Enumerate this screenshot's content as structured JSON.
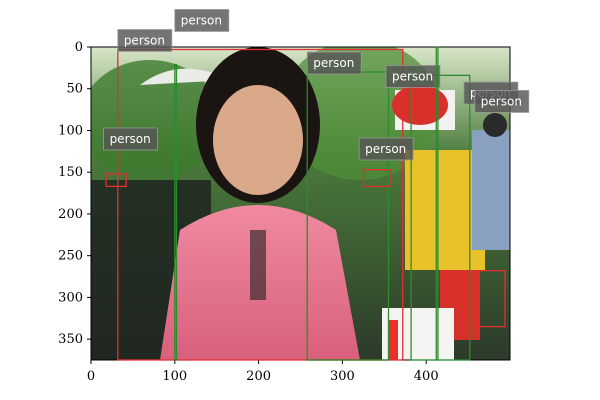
{
  "image": {
    "description_tag": "photo",
    "width": 500,
    "height": 375
  },
  "axes": {
    "x_ticks": [
      0,
      100,
      200,
      300,
      400
    ],
    "y_ticks": [
      0,
      50,
      100,
      150,
      200,
      250,
      300,
      350
    ],
    "x_range": [
      0,
      500
    ],
    "y_range": [
      375,
      0
    ]
  },
  "detections": [
    {
      "label": "person",
      "color": "#e03030",
      "x0": 32,
      "y0": 3,
      "x1": 372,
      "y1": 375,
      "label_x": 32,
      "label_y": -3
    },
    {
      "label": "person",
      "color": "#2e8b2e",
      "x0": 100,
      "y0": 21,
      "x1": 102,
      "y1": 375,
      "label_x": 100,
      "label_y": -27
    },
    {
      "label": "person",
      "color": "#2e8b2e",
      "x0": 258,
      "y0": 30,
      "x1": 355,
      "y1": 375,
      "label_x": 258,
      "label_y": 24
    },
    {
      "label": "person",
      "color": "#2e8b2e",
      "x0": 382,
      "y0": 34,
      "x1": 452,
      "y1": 375,
      "label_x": 352,
      "label_y": 40
    },
    {
      "label": "person",
      "color": "#2e8b2e",
      "x0": 412,
      "y0": 0,
      "x1": 414,
      "y1": 375,
      "label_x": 445,
      "label_y": 60
    },
    {
      "label": "person",
      "color": "#e03030",
      "x0": 325,
      "y0": 147,
      "x1": 358,
      "y1": 167,
      "label_x": 320,
      "label_y": 127
    },
    {
      "label": "person",
      "color": "#e03030",
      "x0": 18,
      "y0": 152,
      "x1": 42,
      "y1": 167,
      "label_x": 15,
      "label_y": 115
    },
    {
      "label": "person",
      "color": "#e03030",
      "x0": 458,
      "y0": 268,
      "x1": 494,
      "y1": 335,
      "label_x": 458,
      "label_y": 70
    }
  ]
}
